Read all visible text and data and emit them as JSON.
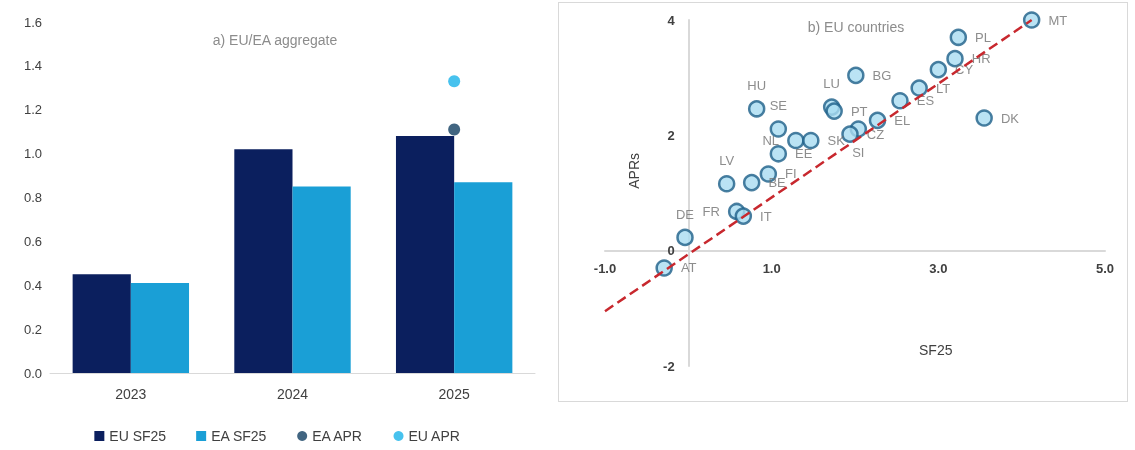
{
  "chart_data": [
    {
      "type": "bar",
      "title": "a) EU/EA aggregate",
      "categories": [
        "2023",
        "2024",
        "2025"
      ],
      "series": [
        {
          "name": "EU SF25",
          "color": "#0b1f5e",
          "values": [
            0.45,
            1.02,
            1.08
          ]
        },
        {
          "name": "EA SF25",
          "color": "#1a9fd6",
          "values": [
            0.41,
            0.85,
            0.87
          ]
        },
        {
          "name": "EA APR",
          "type": "scatter",
          "color": "#123f62",
          "values": [
            null,
            null,
            1.11
          ]
        },
        {
          "name": "EU APR",
          "type": "scatter",
          "color": "#19b3ea",
          "values": [
            null,
            null,
            1.33
          ]
        }
      ],
      "ylim": [
        0,
        1.6
      ],
      "yticks": [
        {
          "value": 0,
          "label": "0.0"
        },
        0.2,
        0.4,
        0.6,
        0.8,
        {
          "value": 1,
          "label": "1.0"
        },
        1.2,
        1.4,
        1.6
      ],
      "grid": false,
      "legend": "bottom",
      "marker": "circle"
    },
    {
      "type": "scatter",
      "title": "b) EU countries",
      "xlabel": "SF25",
      "ylabel": "APRs",
      "series": [
        {
          "color": "#a9dcf1",
          "x": [
            4.12,
            3.24,
            3.2,
            3.0,
            2.77,
            2.54,
            2.01,
            2.27,
            3.55,
            2.04,
            1.94,
            1.72,
            1.75,
            0.82,
            1.08,
            1.29,
            1.47,
            1.08,
            0.96,
            0.46,
            0.76,
            0.58,
            0.66,
            -0.04,
            -0.29
          ],
          "values": [
            4.0,
            3.7,
            3.33,
            3.14,
            2.82,
            2.6,
            3.04,
            2.26,
            2.3,
            2.11,
            2.02,
            2.49,
            2.42,
            2.46,
            2.11,
            1.91,
            1.91,
            1.68,
            1.33,
            1.16,
            1.18,
            0.68,
            0.6,
            0.23,
            -0.3
          ],
          "value_labels": [
            "MT",
            "PL",
            "HR",
            "CY",
            "LT",
            "ES",
            "BG",
            "EL",
            "DK",
            "SI",
            "CZ",
            "LU",
            "PT",
            "HU",
            "SE",
            "NL",
            "SK",
            "EE",
            "FI",
            "LV",
            "BE",
            "FR",
            "IT",
            "DE",
            "AT"
          ]
        },
        {
          "type": "line",
          "color": "#c8282e",
          "line_style": "dashed",
          "marker": "none",
          "x": [
            -1.0,
            4.12
          ],
          "values": [
            -1.05,
            4.0
          ]
        }
      ],
      "xlim": [
        -1,
        5
      ],
      "xticks": [
        {
          "value": -1,
          "label": "-1.0"
        },
        {
          "value": 1,
          "label": "1.0"
        },
        {
          "value": 3,
          "label": "3.0"
        },
        {
          "value": 5,
          "label": "5.0"
        }
      ],
      "ylim": [
        -2,
        4
      ],
      "yticks": [
        -2,
        0,
        2,
        4
      ],
      "grid": false,
      "legend": false,
      "marker": "circle"
    }
  ]
}
